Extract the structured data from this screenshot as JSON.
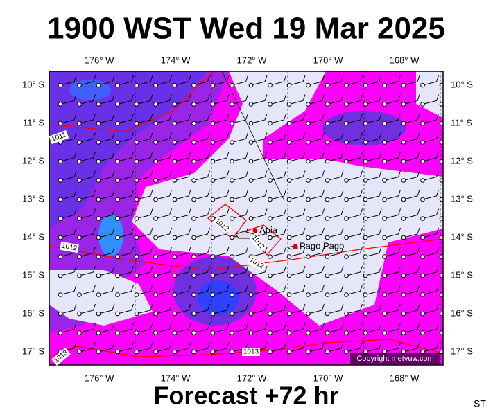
{
  "header": {
    "title": "1900 WST Wed 19 Mar 2025"
  },
  "longitude_labels": [
    "176° W",
    "174° W",
    "172° W",
    "170° W",
    "168° W"
  ],
  "latitude_labels": [
    "10° S",
    "11° S",
    "12° S",
    "13° S",
    "14° S",
    "15° S",
    "16° S",
    "17° S"
  ],
  "places": [
    "Apia",
    "Pago Pago"
  ],
  "isobar_labels": [
    "1011",
    "1012",
    "1012",
    "1012",
    "1012",
    "1013",
    "1013"
  ],
  "copyright": "Copyright metvuw.com",
  "footer": "Forecast +72 hr",
  "corner": "ST"
}
